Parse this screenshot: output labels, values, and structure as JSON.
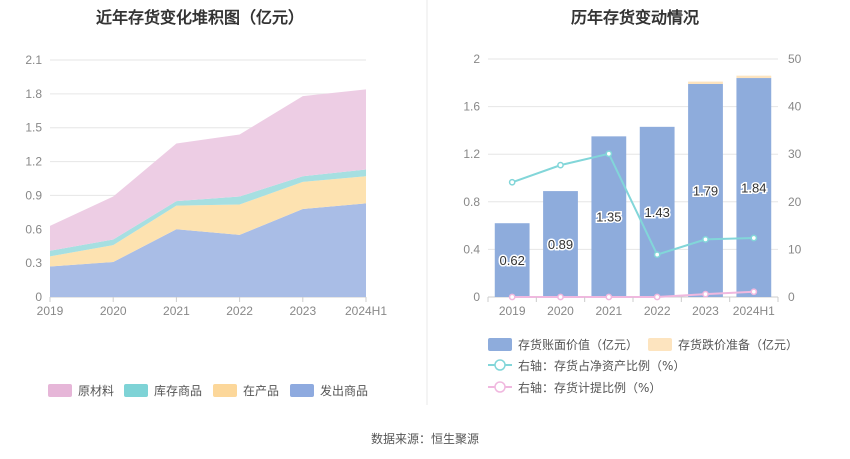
{
  "source_text": "数据来源：恒生聚源",
  "chart_data": [
    {
      "type": "area",
      "stacked": true,
      "title": "近年存货变化堆积图（亿元）",
      "categories": [
        "2019",
        "2020",
        "2021",
        "2022",
        "2023",
        "2024H1"
      ],
      "ylim": [
        0,
        2.1
      ],
      "yticks": [
        "0",
        "0.3",
        "0.6",
        "0.9",
        "1.2",
        "1.5",
        "1.8",
        "2.1"
      ],
      "grid": true,
      "legend_position": "bottom",
      "series": [
        {
          "name": "发出商品",
          "color": "#a9bde6",
          "legend_color": "#8eaadf",
          "values": [
            0.27,
            0.31,
            0.6,
            0.55,
            0.78,
            0.83
          ]
        },
        {
          "name": "在产品",
          "color": "#fde2b0",
          "legend_color": "#fcd79a",
          "values": [
            0.09,
            0.15,
            0.21,
            0.27,
            0.24,
            0.24
          ]
        },
        {
          "name": "库存商品",
          "color": "#a6dfe1",
          "legend_color": "#7ed3d6",
          "values": [
            0.05,
            0.05,
            0.04,
            0.07,
            0.05,
            0.06
          ]
        },
        {
          "name": "原材料",
          "color": "#edcde4",
          "legend_color": "#e6b6d8",
          "values": [
            0.22,
            0.38,
            0.51,
            0.55,
            0.71,
            0.71
          ]
        }
      ],
      "legend_order": [
        "原材料",
        "库存商品",
        "在产品",
        "发出商品"
      ]
    },
    {
      "type": "bar",
      "stacked": true,
      "title": "历年存货变动情况",
      "categories": [
        "2019",
        "2020",
        "2021",
        "2022",
        "2023",
        "2024H1"
      ],
      "ylim": [
        0,
        2
      ],
      "yticks": [
        "0",
        "0.4",
        "0.8",
        "1.2",
        "1.6",
        "2"
      ],
      "y2lim": [
        0,
        50
      ],
      "y2ticks": [
        "0",
        "10",
        "20",
        "30",
        "40",
        "50"
      ],
      "grid": true,
      "legend_position": "bottom",
      "series": [
        {
          "name": "存货账面价值（亿元）",
          "kind": "bar",
          "axis": "left",
          "color": "#8eacdc",
          "values": [
            0.62,
            0.89,
            1.35,
            1.43,
            1.79,
            1.84
          ],
          "labels": [
            "0.62",
            "0.89",
            "1.35",
            "1.43",
            "1.79",
            "1.84"
          ]
        },
        {
          "name": "存货跌价准备（亿元）",
          "kind": "bar",
          "axis": "left",
          "color": "#fde4bf",
          "values": [
            0,
            0,
            0,
            0,
            0.02,
            0.02
          ]
        },
        {
          "name": "右轴：存货占净资产比例（%）",
          "kind": "line",
          "axis": "right",
          "color": "#82d6d9",
          "values": [
            24.1,
            27.7,
            30.1,
            8.9,
            12.1,
            12.4
          ]
        },
        {
          "name": "右轴：存货计提比例（%）",
          "kind": "line",
          "axis": "right",
          "color": "#f0b8df",
          "values": [
            0,
            0,
            0,
            0,
            0.6,
            1.1
          ]
        }
      ]
    }
  ]
}
